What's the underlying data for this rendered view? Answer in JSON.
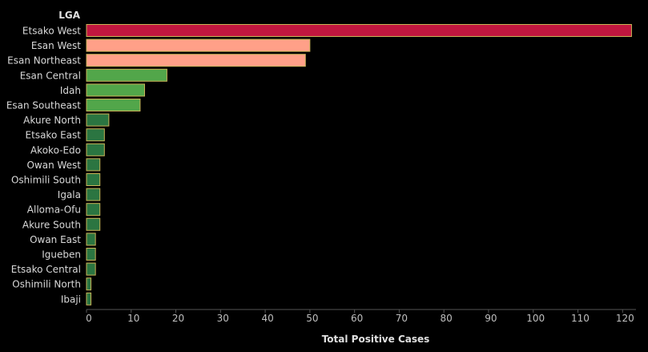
{
  "chart_data": {
    "type": "bar",
    "orientation": "horizontal",
    "dimension_title": "LGA",
    "xlabel": "Total Positive Cases",
    "xlim": [
      0,
      123
    ],
    "x_ticks": [
      0,
      10,
      20,
      30,
      40,
      50,
      60,
      70,
      80,
      90,
      100,
      110,
      120
    ],
    "grid": false,
    "categories": [
      "Etsako West",
      "Esan West",
      "Esan Northeast",
      "Esan Central",
      "Idah",
      "Esan Southeast",
      "Akure North",
      "Etsako East",
      "Akoko-Edo",
      "Owan West",
      "Oshimili South",
      "Igala",
      "Alloma-Ofu",
      "Akure South",
      "Owan East",
      "Igueben",
      "Etsako Central",
      "Oshimili North",
      "Ibaji"
    ],
    "values": [
      122,
      50,
      49,
      18,
      13,
      12,
      5,
      4,
      4,
      3,
      3,
      3,
      3,
      3,
      2,
      2,
      2,
      1,
      1
    ],
    "colors": {
      "highest": "#c0173f",
      "high": "#ffa088",
      "medium": "#52a64a",
      "low": "#2b7541",
      "bar_border": "#c9b458",
      "axis": "#555555"
    }
  }
}
